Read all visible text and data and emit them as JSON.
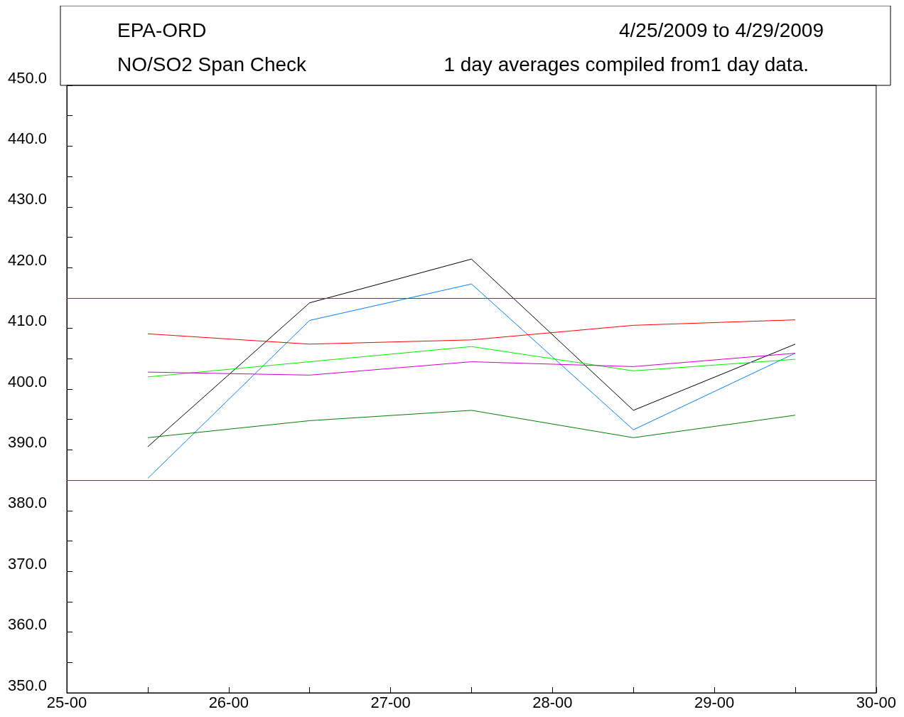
{
  "chart_data": {
    "type": "line",
    "title": "EPA-ORD",
    "subtitle": "NO/SO2 Span Check",
    "annotations": [
      "4/25/2009 to 4/29/2009",
      "1 day averages compiled from1 day data."
    ],
    "x": [
      "2009-04-25T12:00",
      "2009-04-26T12:00",
      "2009-04-27T12:00",
      "2009-04-28T12:00",
      "2009-04-29T12:00"
    ],
    "xlim": [
      "2009-04-25T00:00",
      "2009-04-30T00:00"
    ],
    "xticks": [
      {
        "value": "2009-04-25T00:00",
        "label": "25-00"
      },
      {
        "value": "2009-04-25T12:00",
        "label": null
      },
      {
        "value": "2009-04-26T00:00",
        "label": "26-00"
      },
      {
        "value": "2009-04-26T12:00",
        "label": null
      },
      {
        "value": "2009-04-27T00:00",
        "label": "27-00"
      },
      {
        "value": "2009-04-27T12:00",
        "label": null
      },
      {
        "value": "2009-04-28T00:00",
        "label": "28-00"
      },
      {
        "value": "2009-04-28T12:00",
        "label": null
      },
      {
        "value": "2009-04-29T00:00",
        "label": "29-00"
      },
      {
        "value": "2009-04-29T12:00",
        "label": null
      },
      {
        "value": "2009-04-30T00:00",
        "label": "30-00"
      }
    ],
    "ylim": [
      350,
      450
    ],
    "yticks": [
      {
        "value": 350,
        "label": "350.0"
      },
      {
        "value": 355,
        "label": null
      },
      {
        "value": 360,
        "label": "360.0"
      },
      {
        "value": 365,
        "label": null
      },
      {
        "value": 370,
        "label": "370.0"
      },
      {
        "value": 375,
        "label": null
      },
      {
        "value": 380,
        "label": "380.0"
      },
      {
        "value": 385,
        "label": null
      },
      {
        "value": 390,
        "label": "390.0"
      },
      {
        "value": 395,
        "label": null
      },
      {
        "value": 400,
        "label": "400.0"
      },
      {
        "value": 405,
        "label": null
      },
      {
        "value": 410,
        "label": "410.0"
      },
      {
        "value": 415,
        "label": null
      },
      {
        "value": 420,
        "label": "420.0"
      },
      {
        "value": 425,
        "label": null
      },
      {
        "value": 430,
        "label": "430.0"
      },
      {
        "value": 435,
        "label": null
      },
      {
        "value": 440,
        "label": "440.0"
      },
      {
        "value": 445,
        "label": null
      },
      {
        "value": 450,
        "label": "450.0"
      }
    ],
    "series": [
      {
        "color": "#000000",
        "values": [
          390.5,
          414.2,
          421.4,
          396.5,
          407.4
        ]
      },
      {
        "color": "#0080ff",
        "values": [
          385.3,
          411.3,
          417.3,
          393.3,
          405.9
        ]
      },
      {
        "color": "#ff0000",
        "values": [
          409.1,
          407.4,
          408.1,
          410.5,
          411.4
        ]
      },
      {
        "color": "#00ee00",
        "values": [
          402.0,
          404.5,
          407.0,
          403.0,
          404.9
        ]
      },
      {
        "color": "#cc00cc",
        "values": [
          402.8,
          402.3,
          404.5,
          403.7,
          405.9
        ]
      },
      {
        "color": "#008000",
        "values": [
          392.0,
          394.8,
          396.5,
          392.0,
          395.7
        ]
      }
    ],
    "ref_lines": [
      {
        "axis": "y",
        "value": 415,
        "color": "#ff0000"
      },
      {
        "axis": "y",
        "value": 385,
        "color": "#ff0000"
      }
    ],
    "grid": false,
    "marker": "none",
    "line_style": "solid"
  }
}
